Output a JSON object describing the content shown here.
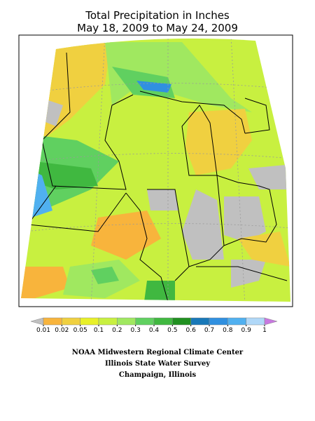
{
  "header": {
    "title": "Total Precipitation in Inches",
    "subtitle": "May 18, 2009 to May 24, 2009"
  },
  "legend": {
    "colors": [
      "#c0c0c0",
      "#f8b43c",
      "#f0d040",
      "#e8f028",
      "#c8f040",
      "#a0e860",
      "#60d060",
      "#40b840",
      "#209020",
      "#1878b8",
      "#3090e0",
      "#50b0f0",
      "#b0d8f8",
      "#c878e0"
    ],
    "ticks": [
      0.01,
      0.02,
      0.05,
      0.1,
      0.2,
      0.3,
      0.4,
      0.5,
      0.6,
      0.7,
      0.8,
      0.9,
      1
    ]
  },
  "credits": [
    "NOAA Midwestern Regional Climate Center",
    "Illinois State Water Survey",
    "Champaign, Illinois"
  ]
}
